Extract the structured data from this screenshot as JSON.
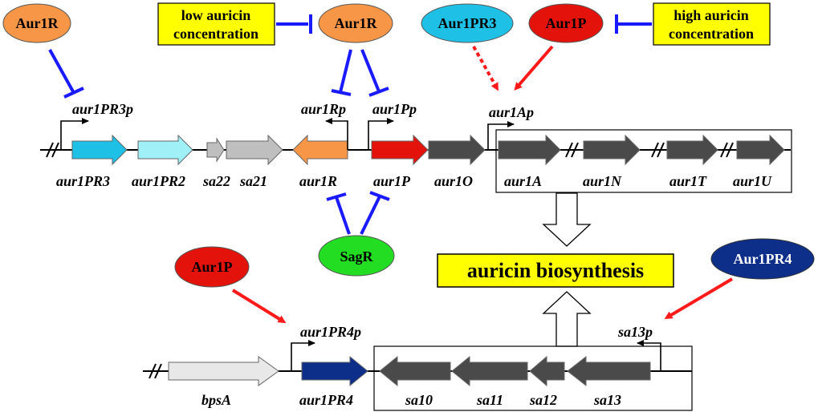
{
  "colors": {
    "aur1R": "#f79646",
    "aur1P": "#e3120b",
    "aur1PR3": "#1ec0e6",
    "aur1PR4": "#0d2f8a",
    "sagR": "#22dd22",
    "highlight": "#ffff00",
    "repress": "#1a1aff",
    "activate": "#ff1a1a",
    "dark_gene": "#4a4a4a",
    "gray_gene": "#bfbfbf",
    "light_gene": "#e8e8e8",
    "cyan_gene": "#1ec0e6",
    "light_cyan_gene": "#9ff0f7"
  },
  "regulators": {
    "aur1r_left": "Aur1R",
    "aur1r_mid": "Aur1R",
    "aur1pr3": "Aur1PR3",
    "aur1p_top": "Aur1P",
    "sagr": "SagR",
    "aur1p_bottom": "Aur1P",
    "aur1pr4": "Aur1PR4"
  },
  "boxes": {
    "low_line1": "low auricin",
    "low_line2": "concentration",
    "high_line1": "high auricin",
    "high_line2": "concentration",
    "biosynthesis": "auricin biosynthesis"
  },
  "promoters": {
    "aur1pr3p": "aur1PR3p",
    "aur1rp": "aur1Rp",
    "aur1pp": "aur1Pp",
    "aur1ap": "aur1Ap",
    "aur1pr4p": "aur1PR4p",
    "sa13p": "sa13p"
  },
  "genes_top": {
    "aur1pr3": "aur1PR3",
    "aur1pr2": "aur1PR2",
    "sa22": "sa22",
    "sa21": "sa21",
    "aur1r": "aur1R",
    "aur1p": "aur1P",
    "aur1o": "aur1O",
    "aur1a": "aur1A",
    "aur1n": "aur1N",
    "aur1t": "aur1T",
    "aur1u": "aur1U"
  },
  "genes_bottom": {
    "bpsa": "bpsA",
    "aur1pr4": "aur1PR4",
    "sa10": "sa10",
    "sa11": "sa11",
    "sa12": "sa12",
    "sa13": "sa13"
  }
}
